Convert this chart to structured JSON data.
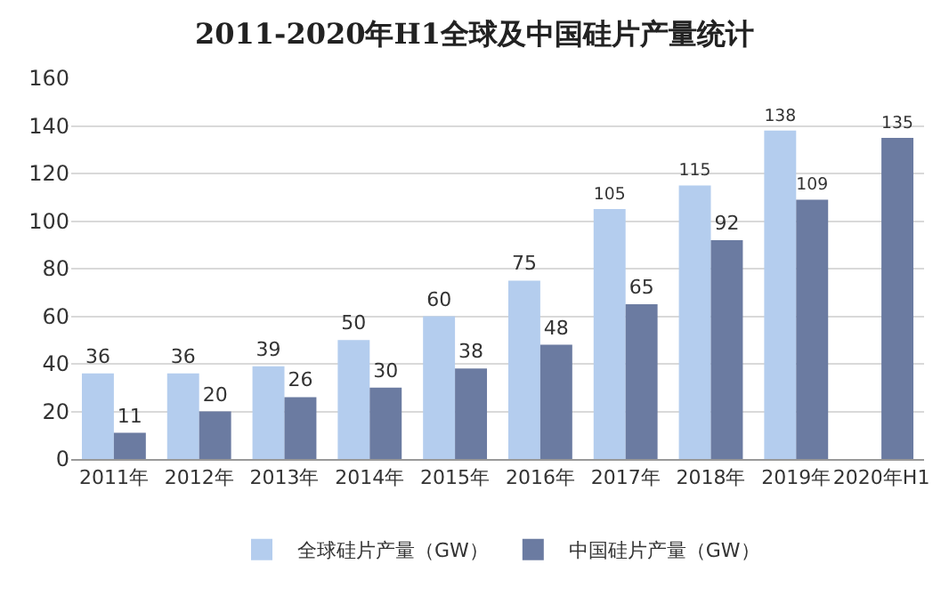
{
  "chart_data": {
    "type": "bar",
    "title": "2011-2020年H1全球及中国硅片产量统计",
    "categories": [
      "2011年",
      "2012年",
      "2013年",
      "2014年",
      "2015年",
      "2016年",
      "2017年",
      "2018年",
      "2019年",
      "2020年H1"
    ],
    "series": [
      {
        "name": "全球硅片产量（GW）",
        "color": "#b4cdee",
        "values": [
          36,
          36,
          39,
          50,
          60,
          75,
          105,
          115,
          138,
          null
        ]
      },
      {
        "name": "中国硅片产量（GW）",
        "color": "#6b7ba1",
        "values": [
          11,
          20,
          26,
          30,
          38,
          48,
          65,
          92,
          109,
          135
        ]
      }
    ],
    "ylim": [
      0,
      160
    ],
    "yticks": [
      0,
      20,
      40,
      60,
      80,
      100,
      120,
      140,
      160
    ],
    "grid": "y",
    "legend": "bottom",
    "data_labels": true
  }
}
